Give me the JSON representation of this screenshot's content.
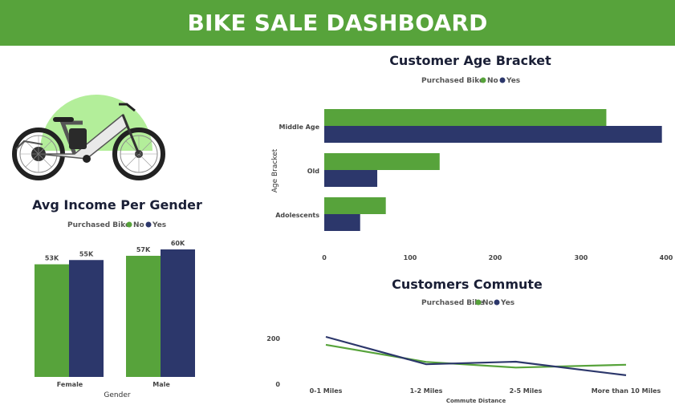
{
  "header": {
    "title": "BIKE SALE DASHBOARD"
  },
  "colors": {
    "green": "#57a33b",
    "navy": "#2c376b",
    "brand": "#57a33b",
    "bike_bg": "#b3ee9a"
  },
  "icons": {
    "bike": "bicycle-illustration"
  },
  "chart_data": [
    {
      "id": "age",
      "type": "bar",
      "orientation": "horizontal",
      "title": "Customer Age Bracket",
      "legend_title": "Purchased Bike",
      "legend_position": "top-center",
      "ylabel": "Age Bracket",
      "xlabel": "",
      "categories": [
        "Middle Age",
        "Old",
        "Adolescents"
      ],
      "series": [
        {
          "name": "No",
          "color": "#57a33b",
          "values": [
            330,
            135,
            72
          ]
        },
        {
          "name": "Yes",
          "color": "#2c376b",
          "values": [
            395,
            62,
            42
          ]
        }
      ],
      "xlim": [
        0,
        400
      ],
      "xticks": [
        "0",
        "100",
        "200",
        "300",
        "400"
      ],
      "grid": false
    },
    {
      "id": "income",
      "type": "bar",
      "title": "Avg Income Per Gender",
      "legend_title": "Purchased Bike",
      "legend_position": "top-center",
      "xlabel": "Gender",
      "ylabel": "",
      "categories": [
        "Female",
        "Male"
      ],
      "series": [
        {
          "name": "No",
          "color": "#57a33b",
          "values": [
            53,
            57
          ],
          "labels": [
            "53K",
            "57K"
          ]
        },
        {
          "name": "Yes",
          "color": "#2c376b",
          "values": [
            55,
            60
          ],
          "labels": [
            "55K",
            "60K"
          ]
        }
      ],
      "ylim": [
        0,
        60
      ],
      "unit": "K",
      "grid": false
    },
    {
      "id": "commute",
      "type": "line",
      "title": "Customers Commute",
      "legend_title": "Purchased Bike",
      "legend_position": "top-center",
      "xlabel": "Commute Distance",
      "ylabel": "",
      "categories": [
        "0-1 Miles",
        "1-2 Miles",
        "2-5 Miles",
        "More than 10 Miles"
      ],
      "x_positions": [
        0,
        1,
        1.9,
        3
      ],
      "series": [
        {
          "name": "No",
          "color": "#57a33b",
          "values": [
            166,
            92,
            68,
            80
          ]
        },
        {
          "name": "Yes",
          "color": "#2c376b",
          "values": [
            200,
            82,
            93,
            35
          ]
        }
      ],
      "ylim": [
        0,
        230
      ],
      "yticks": [
        "0",
        "200"
      ],
      "grid": false
    }
  ]
}
